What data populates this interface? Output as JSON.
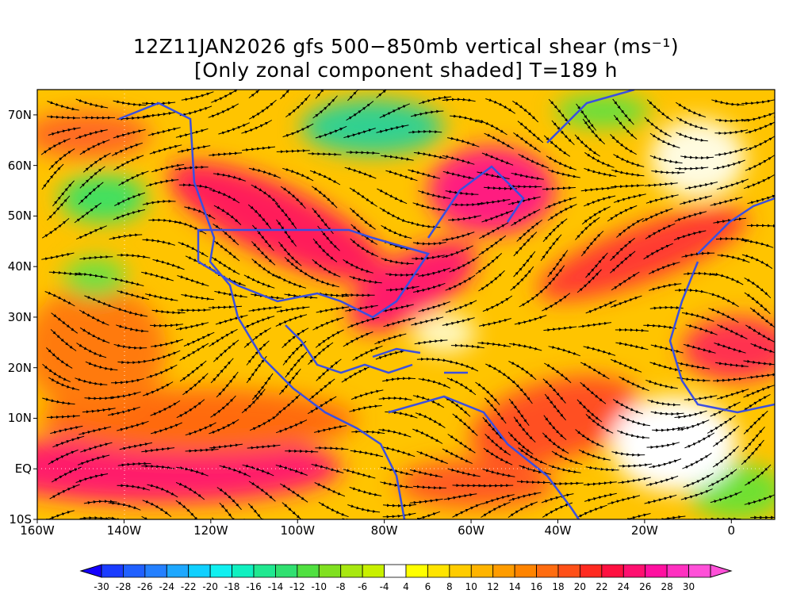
{
  "title": {
    "line1": "12Z11JAN2026 gfs 500−850mb vertical shear (ms⁻¹)",
    "line2": "[Only zonal component shaded] T=189 h"
  },
  "axes": {
    "y_labels": [
      "70N",
      "60N",
      "50N",
      "40N",
      "30N",
      "20N",
      "10N",
      "EQ",
      "10S"
    ],
    "y_values": [
      70,
      60,
      50,
      40,
      30,
      20,
      10,
      0,
      -10
    ],
    "x_labels": [
      "160W",
      "140W",
      "120W",
      "100W",
      "80W",
      "60W",
      "40W",
      "20W",
      "0"
    ],
    "x_values": [
      -160,
      -140,
      -120,
      -100,
      -80,
      -60,
      -40,
      -20,
      0
    ],
    "lon_range": [
      -160,
      10
    ],
    "lat_range": [
      -10,
      75
    ]
  },
  "colorbar": {
    "labels": [
      "-30",
      "-28",
      "-26",
      "-24",
      "-22",
      "-20",
      "-18",
      "-16",
      "-14",
      "-12",
      "-10",
      "-8",
      "-6",
      "-4",
      "4",
      "6",
      "8",
      "10",
      "12",
      "14",
      "16",
      "18",
      "20",
      "22",
      "24",
      "26",
      "28",
      "30"
    ],
    "colors": [
      "#1400ff",
      "#1a3cff",
      "#2060ff",
      "#2480ff",
      "#1ea8ff",
      "#10d0ff",
      "#10f0f0",
      "#10f0c0",
      "#20e890",
      "#30e070",
      "#50e040",
      "#80e020",
      "#a8e810",
      "#c8f000",
      "#ffffff",
      "#ffff00",
      "#ffe400",
      "#ffcc00",
      "#ffb400",
      "#ff9c00",
      "#ff8400",
      "#ff6c10",
      "#ff5018",
      "#ff2a20",
      "#ff1040",
      "#ff1070",
      "#ff10a0",
      "#ff30c0",
      "#ff50d8"
    ]
  },
  "colors": {
    "coastline": "#3a4fe0",
    "streamline": "#000000"
  }
}
